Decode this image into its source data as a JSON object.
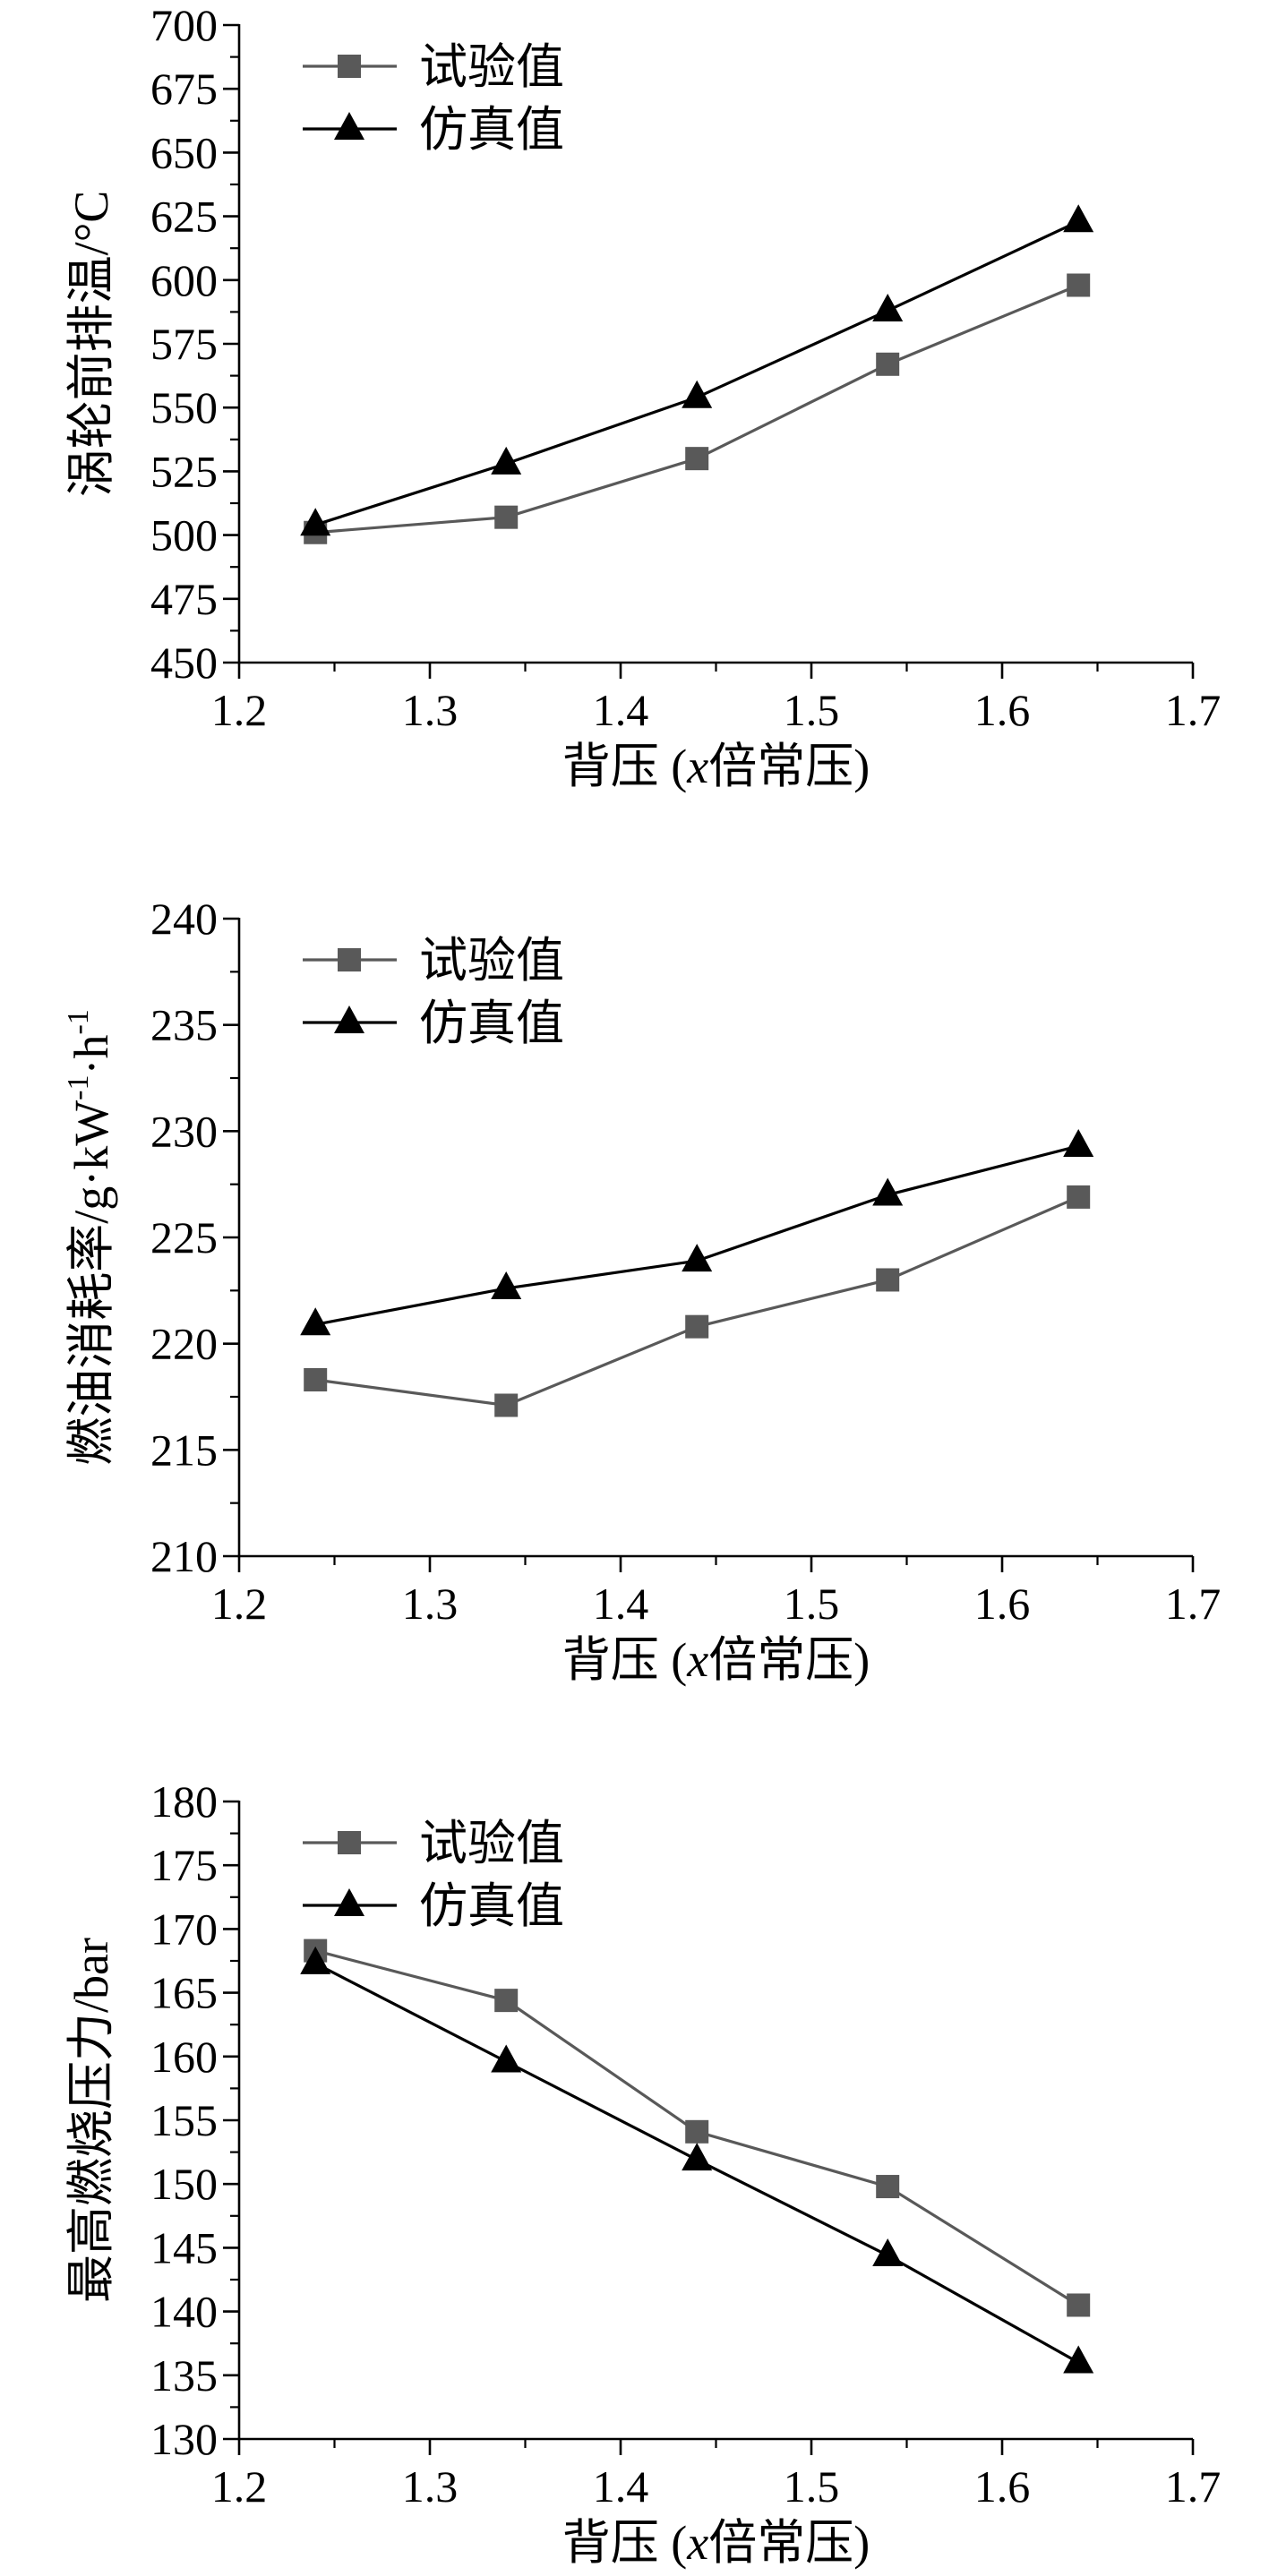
{
  "chart_data": [
    {
      "type": "line",
      "xlabel_parts": [
        {
          "text": "背压 (",
          "italic": false
        },
        {
          "text": "x",
          "italic": true
        },
        {
          "text": "倍常压)",
          "italic": false
        }
      ],
      "ylabel_parts": [
        {
          "text": "涡轮前排温/°C",
          "sup": false
        }
      ],
      "xlim": [
        1.2,
        1.7
      ],
      "xticks": [
        "1.2",
        "1.3",
        "1.4",
        "1.5",
        "1.6",
        "1.7"
      ],
      "ylim": [
        450,
        700
      ],
      "yticks": [
        "450",
        "475",
        "500",
        "525",
        "550",
        "575",
        "600",
        "625",
        "650",
        "675",
        "700"
      ],
      "x": [
        1.24,
        1.34,
        1.44,
        1.54,
        1.64
      ],
      "series": [
        {
          "name": "试验值",
          "marker": "square",
          "color": "#595959",
          "values": [
            501,
            507,
            530,
            567,
            598
          ]
        },
        {
          "name": "仿真值",
          "marker": "triangle",
          "color": "#000000",
          "values": [
            504,
            528,
            554,
            588,
            623
          ]
        }
      ],
      "legend": "top-left",
      "grid": false
    },
    {
      "type": "line",
      "xlabel_parts": [
        {
          "text": "背压 (",
          "italic": false
        },
        {
          "text": "x",
          "italic": true
        },
        {
          "text": "倍常压)",
          "italic": false
        }
      ],
      "ylabel_parts": [
        {
          "text": "燃油消耗率/g·kW",
          "sup": false
        },
        {
          "text": "-1",
          "sup": true
        },
        {
          "text": "·h",
          "sup": false
        },
        {
          "text": "-1",
          "sup": true
        }
      ],
      "xlim": [
        1.2,
        1.7
      ],
      "xticks": [
        "1.2",
        "1.3",
        "1.4",
        "1.5",
        "1.6",
        "1.7"
      ],
      "ylim": [
        210,
        240
      ],
      "yticks": [
        "210",
        "215",
        "220",
        "225",
        "230",
        "235",
        "240"
      ],
      "x": [
        1.24,
        1.34,
        1.44,
        1.54,
        1.64
      ],
      "series": [
        {
          "name": "试验值",
          "marker": "square",
          "color": "#595959",
          "values": [
            218.3,
            217.1,
            220.8,
            223.0,
            226.9
          ]
        },
        {
          "name": "仿真值",
          "marker": "triangle",
          "color": "#000000",
          "values": [
            220.9,
            222.6,
            223.9,
            227.0,
            229.3
          ]
        }
      ],
      "legend": "top-left",
      "grid": false
    },
    {
      "type": "line",
      "xlabel_parts": [
        {
          "text": "背压 (",
          "italic": false
        },
        {
          "text": "x",
          "italic": true
        },
        {
          "text": "倍常压)",
          "italic": false
        }
      ],
      "ylabel_parts": [
        {
          "text": "最高燃烧压力/bar",
          "sup": false
        }
      ],
      "xlim": [
        1.2,
        1.7
      ],
      "xticks": [
        "1.2",
        "1.3",
        "1.4",
        "1.5",
        "1.6",
        "1.7"
      ],
      "ylim": [
        130,
        180
      ],
      "yticks": [
        "130",
        "135",
        "140",
        "145",
        "150",
        "155",
        "160",
        "165",
        "170",
        "175",
        "180"
      ],
      "x": [
        1.24,
        1.34,
        1.44,
        1.54,
        1.64
      ],
      "series": [
        {
          "name": "试验值",
          "marker": "square",
          "color": "#595959",
          "values": [
            168.3,
            164.4,
            154.1,
            149.8,
            140.5
          ]
        },
        {
          "name": "仿真值",
          "marker": "triangle",
          "color": "#000000",
          "values": [
            167.3,
            159.6,
            151.9,
            144.4,
            136.0
          ]
        }
      ],
      "legend": "top-left",
      "grid": false
    }
  ]
}
